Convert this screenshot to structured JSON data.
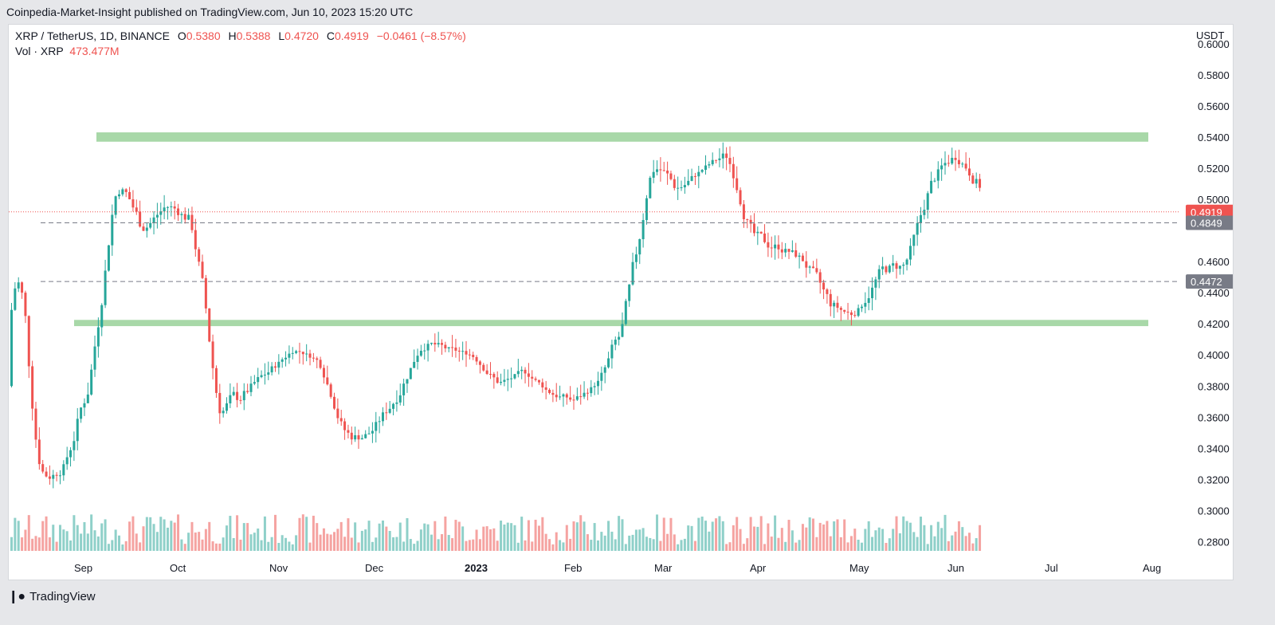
{
  "header": {
    "published": "Coinpedia-Market-Insight published on TradingView.com, Jun 10, 2023 15:20 UTC"
  },
  "legend": {
    "symbol": "XRP / TetherUS, 1D, BINANCE",
    "o_label": "O",
    "o_value": "0.5380",
    "h_label": "H",
    "h_value": "0.5388",
    "l_label": "L",
    "l_value": "0.4720",
    "c_label": "C",
    "c_value": "0.4919",
    "change": "−0.0461 (−8.57%)",
    "vol_label": "Vol · XRP",
    "vol_value": "473.477M"
  },
  "footer": {
    "brand": "TradingView"
  },
  "colors": {
    "up": "#26a69a",
    "down": "#ef5350",
    "up_vol": "#8fd0c9",
    "down_vol": "#f5a3a1",
    "zone": "#a8d8a8",
    "last_price": "#ef5350",
    "level_label": "#787b86"
  },
  "chart_data": {
    "type": "candlestick",
    "title": "XRP / TetherUS, 1D, BINANCE",
    "ylabel": "USDT",
    "ylim": [
      0.27,
      0.605
    ],
    "y_ticks": [
      "0.6000",
      "0.5800",
      "0.5600",
      "0.5400",
      "0.5200",
      "0.5000",
      "0.4600",
      "0.4400",
      "0.4200",
      "0.4000",
      "0.3800",
      "0.3600",
      "0.3400",
      "0.3200",
      "0.3000",
      "0.2800"
    ],
    "x_ticks": [
      "Sep",
      "Oct",
      "Nov",
      "Dec",
      "2023",
      "Feb",
      "Mar",
      "Apr",
      "May",
      "Jun",
      "Jul",
      "Aug"
    ],
    "price_labels": [
      {
        "value": 0.4919,
        "text": "0.4919",
        "kind": "last"
      },
      {
        "value": 0.4849,
        "text": "0.4849",
        "kind": "level"
      },
      {
        "value": 0.4472,
        "text": "0.4472",
        "kind": "level"
      }
    ],
    "zones": [
      {
        "from": 0.537,
        "to": 0.543
      },
      {
        "from": 0.4185,
        "to": 0.4225
      }
    ],
    "anchors": [
      [
        0.38,
        0.6
      ],
      [
        0.3,
        0.33
      ],
      [
        0.32,
        0.34
      ],
      [
        0.36,
        0.42
      ],
      [
        0.51,
        0.53
      ],
      [
        0.46,
        0.5
      ],
      [
        0.49,
        0.505
      ],
      [
        0.47,
        0.5
      ],
      [
        0.32,
        0.4
      ],
      [
        0.36,
        0.39
      ],
      [
        0.38,
        0.4
      ],
      [
        0.4,
        0.41
      ],
      [
        0.39,
        0.4
      ],
      [
        0.33,
        0.36
      ],
      [
        0.34,
        0.36
      ],
      [
        0.36,
        0.39
      ],
      [
        0.4,
        0.42
      ],
      [
        0.395,
        0.41
      ],
      [
        0.395,
        0.405
      ],
      [
        0.37,
        0.39
      ],
      [
        0.385,
        0.395
      ],
      [
        0.37,
        0.38
      ],
      [
        0.36,
        0.38
      ],
      [
        0.38,
        0.39
      ],
      [
        0.38,
        0.46
      ],
      [
        0.52,
        0.54
      ],
      [
        0.49,
        0.52
      ],
      [
        0.515,
        0.525
      ],
      [
        0.52,
        0.54
      ],
      [
        0.45,
        0.49
      ],
      [
        0.46,
        0.48
      ],
      [
        0.45,
        0.47
      ],
      [
        0.41,
        0.45
      ],
      [
        0.42,
        0.43
      ],
      [
        0.44,
        0.47
      ],
      [
        0.445,
        0.47
      ],
      [
        0.5,
        0.53
      ],
      [
        0.52,
        0.54
      ],
      [
        0.49,
        0.52
      ]
    ]
  }
}
